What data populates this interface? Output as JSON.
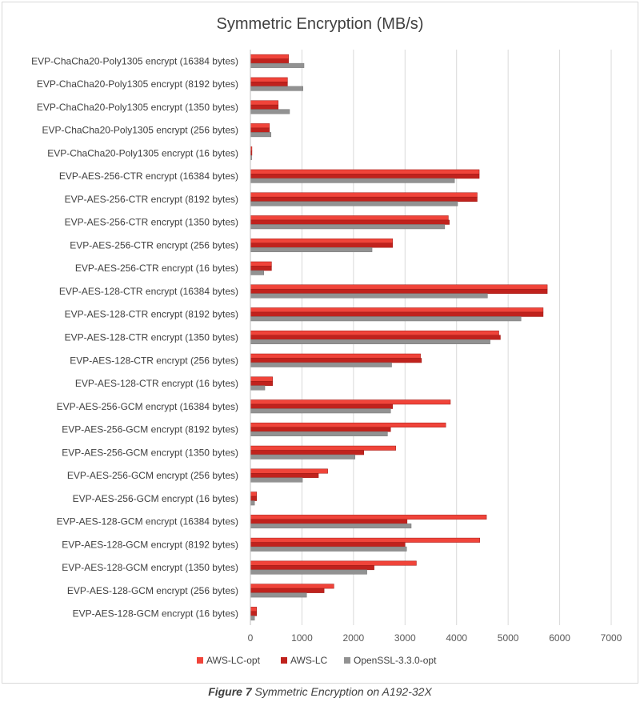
{
  "chart_data": {
    "type": "bar",
    "orientation": "horizontal",
    "title": "Symmetric Encryption (MB/s)",
    "categories": [
      "EVP-ChaCha20-Poly1305 encrypt (16384 bytes)",
      "EVP-ChaCha20-Poly1305 encrypt (8192 bytes)",
      "EVP-ChaCha20-Poly1305 encrypt (1350 bytes)",
      "EVP-ChaCha20-Poly1305 encrypt (256 bytes)",
      "EVP-ChaCha20-Poly1305 encrypt (16 bytes)",
      "EVP-AES-256-CTR encrypt (16384 bytes)",
      "EVP-AES-256-CTR encrypt (8192 bytes)",
      "EVP-AES-256-CTR encrypt (1350 bytes)",
      "EVP-AES-256-CTR encrypt (256 bytes)",
      "EVP-AES-256-CTR encrypt (16 bytes)",
      "EVP-AES-128-CTR encrypt (16384 bytes)",
      "EVP-AES-128-CTR encrypt (8192 bytes)",
      "EVP-AES-128-CTR encrypt (1350 bytes)",
      "EVP-AES-128-CTR encrypt (256 bytes)",
      "EVP-AES-128-CTR encrypt (16 bytes)",
      "EVP-AES-256-GCM encrypt (16384 bytes)",
      "EVP-AES-256-GCM encrypt (8192 bytes)",
      "EVP-AES-256-GCM encrypt (1350 bytes)",
      "EVP-AES-256-GCM encrypt (256 bytes)",
      "EVP-AES-256-GCM encrypt (16 bytes)",
      "EVP-AES-128-GCM encrypt (16384 bytes)",
      "EVP-AES-128-GCM encrypt (8192 bytes)",
      "EVP-AES-128-GCM encrypt (1350 bytes)",
      "EVP-AES-128-GCM encrypt (256 bytes)",
      "EVP-AES-128-GCM encrypt (16 bytes)"
    ],
    "series": [
      {
        "name": "AWS-LC-opt",
        "color": "#f0443a",
        "values": [
          740,
          720,
          540,
          370,
          30,
          4440,
          4400,
          3840,
          2760,
          410,
          5760,
          5680,
          4820,
          3300,
          430,
          3880,
          3790,
          2820,
          1500,
          120,
          4580,
          4450,
          3220,
          1620,
          120
        ]
      },
      {
        "name": "AWS-LC",
        "color": "#c0221d",
        "values": [
          740,
          720,
          540,
          370,
          30,
          4440,
          4400,
          3860,
          2760,
          410,
          5760,
          5680,
          4850,
          3320,
          430,
          2760,
          2720,
          2200,
          1320,
          120,
          3040,
          3000,
          2400,
          1430,
          120
        ]
      },
      {
        "name": "OpenSSL-3.3.0-opt",
        "color": "#929292",
        "values": [
          1040,
          1020,
          760,
          400,
          25,
          3960,
          4020,
          3770,
          2360,
          260,
          4600,
          5250,
          4650,
          2740,
          280,
          2720,
          2660,
          2030,
          1010,
          80,
          3120,
          3030,
          2260,
          1090,
          80
        ]
      }
    ],
    "xlim": [
      0,
      7000
    ],
    "xticks": [
      "0",
      "1000",
      "2000",
      "3000",
      "4000",
      "5000",
      "6000",
      "7000"
    ],
    "grid": true,
    "legend_position": "bottom"
  },
  "caption": {
    "label": "Figure 7",
    "text": "Symmetric Encryption on A192-32X"
  }
}
